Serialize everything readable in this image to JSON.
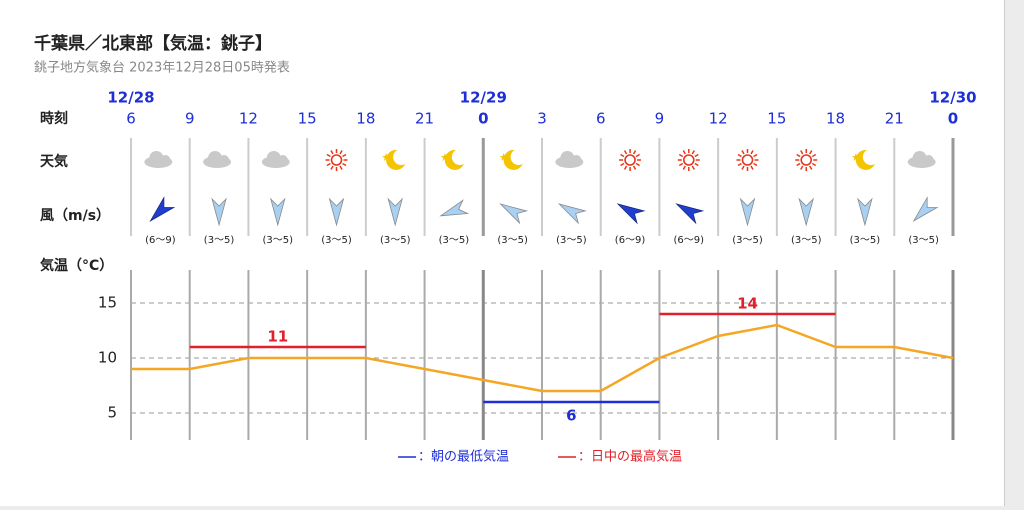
{
  "header": {
    "title": "千葉県／北東部【気温：銚子】",
    "subtitle": "銚子地方気象台 2023年12月28日05時発表"
  },
  "rows": {
    "time": "時刻",
    "weather": "天気",
    "wind": "風（m/s）",
    "temperature": "気温（°C）"
  },
  "wind": {
    "labels": [
      "(6〜9)",
      "(3〜5)",
      "(3〜5)",
      "(3〜5)",
      "(3〜5)",
      "(3〜5)",
      "(3〜5)",
      "(3〜5)",
      "(6〜9)",
      "(6〜9)",
      "(3〜5)",
      "(3〜5)",
      "(3〜5)",
      "(3〜5)"
    ]
  },
  "chart_data": {
    "type": "line",
    "date_labels": [
      "12/28",
      null,
      null,
      null,
      null,
      null,
      "12/29",
      null,
      null,
      null,
      null,
      null,
      null,
      null,
      "12/30"
    ],
    "categories": [
      "6",
      "9",
      "12",
      "15",
      "18",
      "21",
      "0",
      "3",
      "6",
      "9",
      "12",
      "15",
      "18",
      "21",
      "0"
    ],
    "series": [
      {
        "color": "#f5a623",
        "values": [
          9,
          9,
          10,
          10,
          10,
          9,
          8,
          7,
          7,
          10,
          12,
          13,
          11,
          11,
          10
        ]
      },
      {
        "name": "：朝の最低気温",
        "color": "#1f2fd6",
        "values": [
          null,
          null,
          null,
          null,
          null,
          null,
          6,
          6,
          6,
          6,
          null,
          null,
          null,
          null,
          null
        ]
      },
      {
        "name": "：日中の最高気温",
        "color": "#e0202a",
        "values": [
          null,
          11,
          11,
          11,
          11,
          null,
          null,
          null,
          null,
          14,
          14,
          14,
          14,
          null,
          null
        ]
      }
    ],
    "ylim": [
      2.5,
      17.5
    ],
    "yticks": [
      5,
      10,
      15
    ],
    "grid": true
  }
}
